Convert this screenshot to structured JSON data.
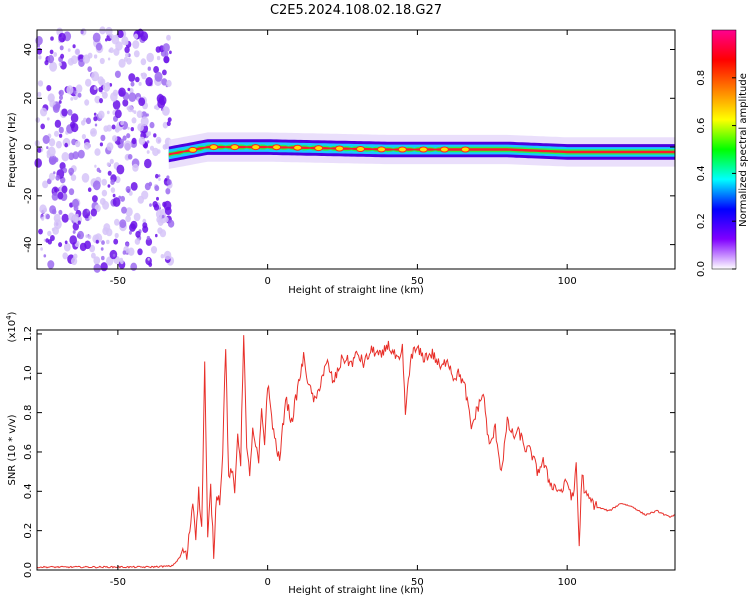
{
  "figure": {
    "title": "C2E5.2024.108.02.18.G27"
  },
  "chart_data": [
    {
      "type": "heatmap",
      "xlabel": "Height of straight line (km)",
      "ylabel": "Frequency (Hz)",
      "xlim": [
        -77,
        136
      ],
      "ylim": [
        -50,
        48
      ],
      "x_ticks": [
        -50,
        0,
        50,
        100
      ],
      "y_ticks": [
        -40,
        -20,
        0,
        20,
        40
      ],
      "noise_region_x": [
        -77,
        -32
      ],
      "signal_x_range": [
        -33,
        136
      ],
      "signal_center_hz": [
        {
          "x": -33,
          "hz": -3
        },
        {
          "x": -20,
          "hz": 0
        },
        {
          "x": 0,
          "hz": 0
        },
        {
          "x": 40,
          "hz": -1
        },
        {
          "x": 80,
          "hz": -1
        },
        {
          "x": 100,
          "hz": -2
        },
        {
          "x": 136,
          "hz": -2
        }
      ],
      "colorbar": {
        "label": "Normalized spectral amplitude",
        "ticks": [
          0.0,
          0.2,
          0.4,
          0.6,
          0.8
        ],
        "range": [
          0,
          1
        ],
        "colors": [
          "#ffffff",
          "#8000ff",
          "#0000ff",
          "#00ffff",
          "#00ff00",
          "#ffff00",
          "#ff8000",
          "#ff0000",
          "#ff0090"
        ]
      },
      "grid": false
    },
    {
      "type": "line",
      "xlabel": "Height of straight line (km)",
      "ylabel": "SNR (10 * v/v)",
      "y_multiplier": "(x10^4)",
      "multiplier_base": "(x10",
      "multiplier_exp": "4",
      "multiplier_close": ")",
      "xlim": [
        -77,
        136
      ],
      "ylim": [
        0,
        1.22
      ],
      "x_ticks": [
        -50,
        0,
        50,
        100
      ],
      "y_ticks": [
        0.0,
        0.2,
        0.4,
        0.6,
        0.8,
        1.0,
        1.2
      ],
      "series": [
        {
          "color": "#e8302a",
          "x": [
            -77,
            -60,
            -40,
            -32,
            -30,
            -28,
            -27,
            -25,
            -24,
            -23,
            -22,
            -21,
            -20,
            -19,
            -18,
            -17,
            -16,
            -15,
            -14,
            -13,
            -12,
            -11,
            -10,
            -9,
            -8,
            -7,
            -6,
            -5,
            -4,
            -3,
            -2,
            -1,
            0,
            2,
            4,
            6,
            8,
            10,
            12,
            14,
            16,
            18,
            20,
            22,
            25,
            28,
            30,
            32,
            35,
            38,
            40,
            42,
            44,
            45,
            46,
            48,
            50,
            52,
            55,
            58,
            60,
            62,
            64,
            66,
            68,
            70,
            72,
            74,
            76,
            78,
            80,
            82,
            84,
            86,
            88,
            90,
            92,
            94,
            96,
            98,
            100,
            102,
            103,
            104,
            105,
            106,
            108,
            110,
            114,
            118,
            122,
            126,
            130,
            134,
            136
          ],
          "y": [
            0.015,
            0.015,
            0.015,
            0.02,
            0.05,
            0.1,
            0.06,
            0.35,
            0.18,
            0.4,
            0.2,
            1.05,
            0.15,
            0.42,
            0.08,
            0.4,
            0.35,
            0.6,
            1.15,
            0.45,
            0.52,
            0.38,
            0.7,
            0.55,
            1.22,
            0.6,
            0.5,
            0.7,
            0.62,
            0.55,
            0.8,
            0.65,
            0.95,
            0.7,
            0.55,
            0.88,
            0.75,
            0.92,
            1.08,
            0.92,
            0.85,
            0.98,
            1.05,
            0.95,
            1.08,
            1.05,
            1.1,
            1.05,
            1.12,
            1.08,
            1.15,
            1.1,
            1.05,
            1.12,
            0.8,
            1.1,
            1.12,
            1.08,
            1.1,
            1.02,
            1.08,
            0.98,
            1.0,
            0.92,
            0.72,
            0.82,
            0.9,
            0.62,
            0.72,
            0.5,
            0.75,
            0.68,
            0.7,
            0.62,
            0.6,
            0.5,
            0.55,
            0.45,
            0.42,
            0.4,
            0.45,
            0.35,
            0.55,
            0.12,
            0.5,
            0.38,
            0.35,
            0.32,
            0.3,
            0.34,
            0.32,
            0.28,
            0.3,
            0.27,
            0.28
          ]
        }
      ],
      "grid": false
    }
  ]
}
